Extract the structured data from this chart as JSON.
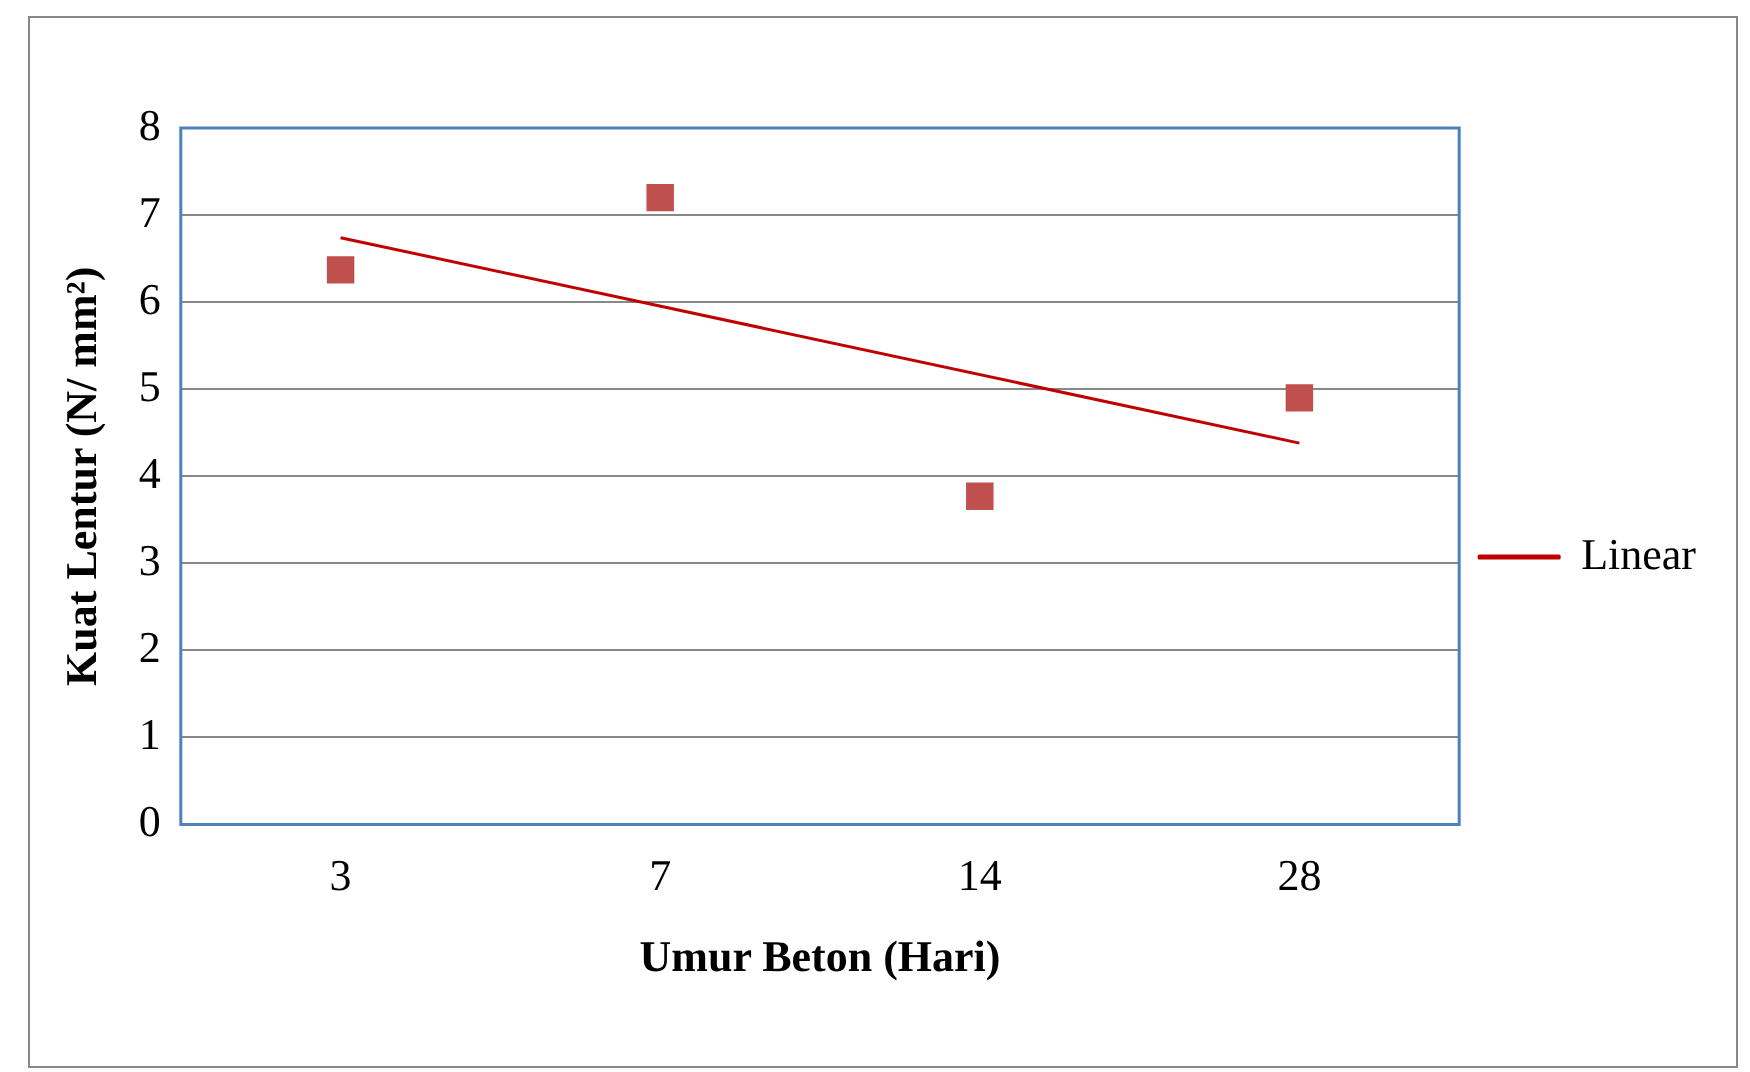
{
  "chart_data": {
    "type": "scatter",
    "xlabel": "Umur Beton (Hari)",
    "ylabel": "Kuat Lentur (N/ mm²)",
    "categories": [
      "3",
      "7",
      "14",
      "28"
    ],
    "ylim": [
      0,
      8
    ],
    "yticks": [
      0,
      1,
      2,
      3,
      4,
      5,
      6,
      7,
      8
    ],
    "grid": "y",
    "legend": "right",
    "series": [
      {
        "color": "#c0504d",
        "marker": "square",
        "values": [
          6.37,
          7.2,
          3.77,
          4.9
        ]
      },
      {
        "type": "line",
        "name": "Linear",
        "color": "#c00000",
        "marker": "none",
        "line_style": "solid",
        "x": [
          "3",
          "28"
        ],
        "values": [
          6.74,
          4.38
        ]
      }
    ]
  }
}
